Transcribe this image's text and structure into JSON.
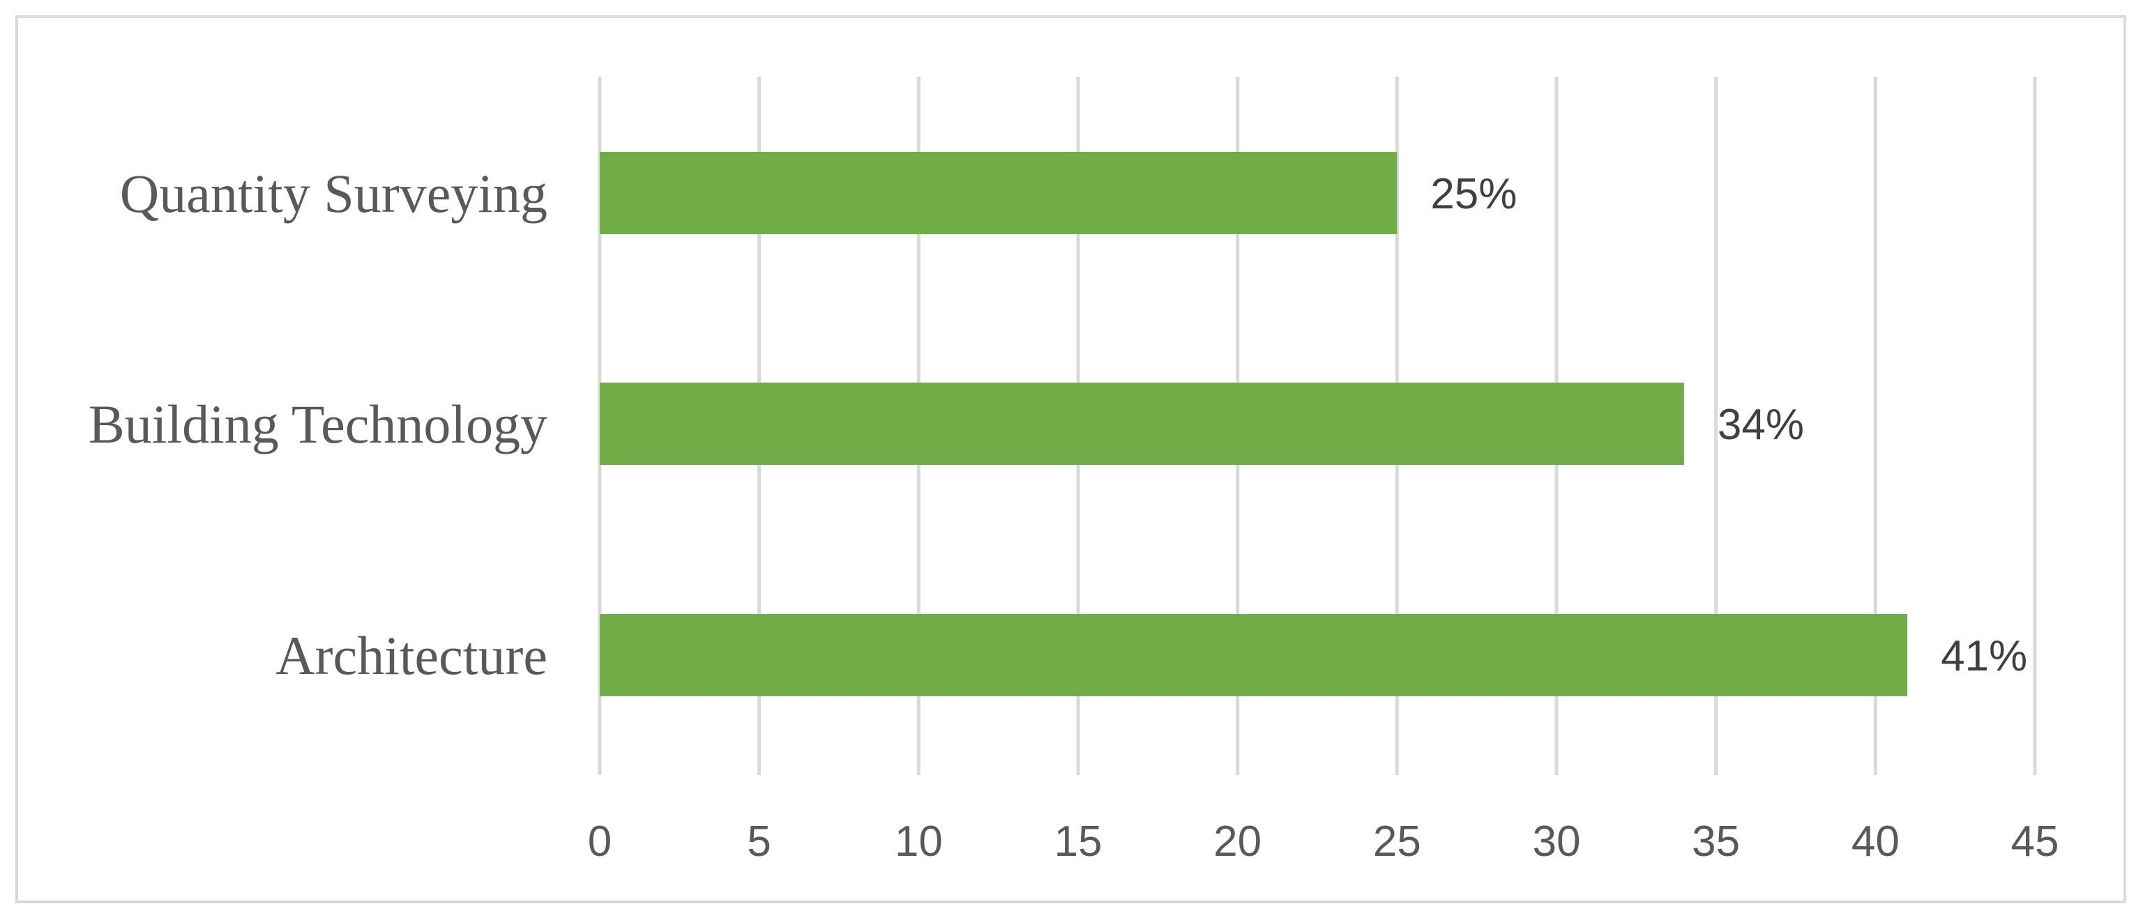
{
  "chart_data": {
    "type": "bar",
    "orientation": "horizontal",
    "categories": [
      "Quantity Surveying",
      "Building Technology",
      "Architecture"
    ],
    "values": [
      25,
      34,
      41
    ],
    "data_labels": [
      "25%",
      "34%",
      "41%"
    ],
    "xlim": [
      0,
      45
    ],
    "xticks": [
      0,
      5,
      10,
      15,
      20,
      25,
      30,
      35,
      40,
      45
    ],
    "xtick_labels": [
      "0",
      "5",
      "10",
      "15",
      "20",
      "25",
      "30",
      "35",
      "40",
      "45"
    ],
    "grid": "vertical",
    "legend": "none",
    "title": "",
    "xlabel": "",
    "ylabel": "",
    "colors": {
      "bar": "#70ad47",
      "grid": "#d9d9d9",
      "frame": "#d9d9d9",
      "axis_text": "#595959",
      "data_label_text": "#404040"
    }
  }
}
